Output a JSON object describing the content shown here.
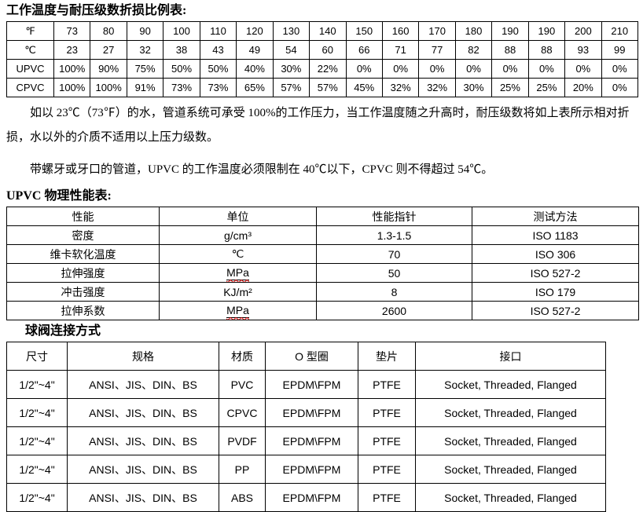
{
  "titles": {
    "t1": "工作温度与耐压级数折损比例表:",
    "t2": "UPVC 物理性能表:",
    "t3": "球阀连接方式"
  },
  "paragraphs": {
    "p1": "如以 23℃（73℉）的水，管道系统可承受 100%的工作压力，当工作温度随之升高时，耐压级数将如上表所示相对折损，水以外的介质不适用以上压力级数。",
    "p2": "带螺牙或牙口的管道，UPVC 的工作温度必须限制在 40℃以下，CPVC 则不得超过 54℃。"
  },
  "temp_table": {
    "rows": [
      {
        "label": "℉",
        "values": [
          "73",
          "80",
          "90",
          "100",
          "110",
          "120",
          "130",
          "140",
          "150",
          "160",
          "170",
          "180",
          "190",
          "190",
          "200",
          "210"
        ]
      },
      {
        "label": "℃",
        "values": [
          "23",
          "27",
          "32",
          "38",
          "43",
          "49",
          "54",
          "60",
          "66",
          "71",
          "77",
          "82",
          "88",
          "88",
          "93",
          "99"
        ]
      },
      {
        "label": "UPVC",
        "values": [
          "100%",
          "90%",
          "75%",
          "50%",
          "50%",
          "40%",
          "30%",
          "22%",
          "0%",
          "0%",
          "0%",
          "0%",
          "0%",
          "0%",
          "0%",
          "0%"
        ]
      },
      {
        "label": "CPVC",
        "values": [
          "100%",
          "100%",
          "91%",
          "73%",
          "73%",
          "65%",
          "57%",
          "57%",
          "45%",
          "32%",
          "32%",
          "30%",
          "25%",
          "25%",
          "20%",
          "0%"
        ]
      }
    ]
  },
  "physical_table": {
    "headers": [
      "性能",
      "单位",
      "性能指针",
      "测试方法"
    ],
    "underlined_unit": "MPa",
    "rows": [
      [
        "密度",
        "g/cm³",
        "1.3-1.5",
        "ISO 1183"
      ],
      [
        "维卡软化温度",
        "℃",
        "70",
        "ISO 306"
      ],
      [
        "拉伸强度",
        "MPa",
        "50",
        "ISO 527-2"
      ],
      [
        "冲击强度",
        "KJ/m²",
        "8",
        "ISO 179"
      ],
      [
        "拉伸系数",
        "MPa",
        "2600",
        "ISO 527-2"
      ]
    ]
  },
  "valve_table": {
    "headers": [
      "尺寸",
      "规格",
      "材质",
      "O 型圈",
      "垫片",
      "接口"
    ],
    "rows": [
      [
        "1/2\"~4\"",
        "ANSI、JIS、DIN、BS",
        "PVC",
        "EPDM\\FPM",
        "PTFE",
        "Socket, Threaded, Flanged"
      ],
      [
        "1/2\"~4\"",
        "ANSI、JIS、DIN、BS",
        "CPVC",
        "EPDM\\FPM",
        "PTFE",
        "Socket, Threaded, Flanged"
      ],
      [
        "1/2\"~4\"",
        "ANSI、JIS、DIN、BS",
        "PVDF",
        "EPDM\\FPM",
        "PTFE",
        "Socket, Threaded, Flanged"
      ],
      [
        "1/2\"~4\"",
        "ANSI、JIS、DIN、BS",
        "PP",
        "EPDM\\FPM",
        "PTFE",
        "Socket, Threaded, Flanged"
      ],
      [
        "1/2\"~4\"",
        "ANSI、JIS、DIN、BS",
        "ABS",
        "EPDM\\FPM",
        "PTFE",
        "Socket, Threaded, Flanged"
      ]
    ]
  },
  "colors": {
    "text": "#000000",
    "border": "#000000",
    "spellcheck_wavy": "#e60000",
    "background": "#ffffff"
  }
}
